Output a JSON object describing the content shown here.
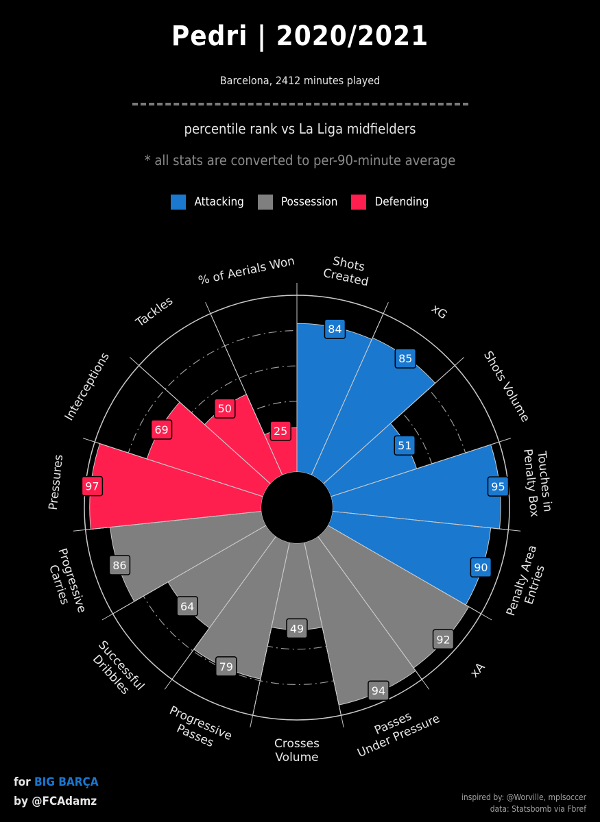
{
  "header": {
    "title": "Pedri | 2020/2021",
    "subtitle": "Barcelona, 2412 minutes played",
    "percentile_text": "percentile rank vs La Liga midfielders",
    "note": "* all stats are converted to per-90-minute average"
  },
  "colors": {
    "Attacking": "#1a78cf",
    "Possession": "#7f7f7f",
    "Defending": "#ff1f4f",
    "background": "#000000",
    "slice_background": "#000000",
    "grid": "#c8c8c8"
  },
  "legend": [
    {
      "label": "Attacking",
      "color": "#1a78cf"
    },
    {
      "label": "Possession",
      "color": "#7f7f7f"
    },
    {
      "label": "Defending",
      "color": "#ff1f4f"
    }
  ],
  "chart_data": {
    "type": "radial-bar (pizza)",
    "title": "Pedri | 2020/2021",
    "value_range": [
      0,
      100
    ],
    "gridlines": "dashed rings",
    "legend_position": "top-center",
    "params": [
      {
        "label": "Shots\nCreated",
        "value": 84,
        "group": "Attacking"
      },
      {
        "label": "xG",
        "value": 85,
        "group": "Attacking"
      },
      {
        "label": "Shots Volume",
        "value": 51,
        "group": "Attacking"
      },
      {
        "label": "Touches in\nPenalty Box",
        "value": 95,
        "group": "Attacking"
      },
      {
        "label": "Penalty Area\nEntries",
        "value": 90,
        "group": "Attacking"
      },
      {
        "label": "xA",
        "value": 92,
        "group": "Possession"
      },
      {
        "label": "Passes\nUnder Pressure",
        "value": 94,
        "group": "Possession"
      },
      {
        "label": "Crosses\nVolume",
        "value": 49,
        "group": "Possession"
      },
      {
        "label": "Progressive\nPasses",
        "value": 79,
        "group": "Possession"
      },
      {
        "label": "Successful\nDribbles",
        "value": 64,
        "group": "Possession"
      },
      {
        "label": "Progressive\nCarries",
        "value": 86,
        "group": "Possession"
      },
      {
        "label": "Pressures",
        "value": 97,
        "group": "Defending"
      },
      {
        "label": "Interceptions",
        "value": 69,
        "group": "Defending"
      },
      {
        "label": "Tackles",
        "value": 50,
        "group": "Defending"
      },
      {
        "label": "% of Aerials Won",
        "value": 25,
        "group": "Defending"
      }
    ]
  },
  "footer": {
    "for_prefix": "for ",
    "brand": "BIG BARÇA",
    "by_line": "by @FCAdamz",
    "inspired": "inspired by: @Worville, mplsoccer",
    "source": "data: Statsbomb via Fbref"
  }
}
